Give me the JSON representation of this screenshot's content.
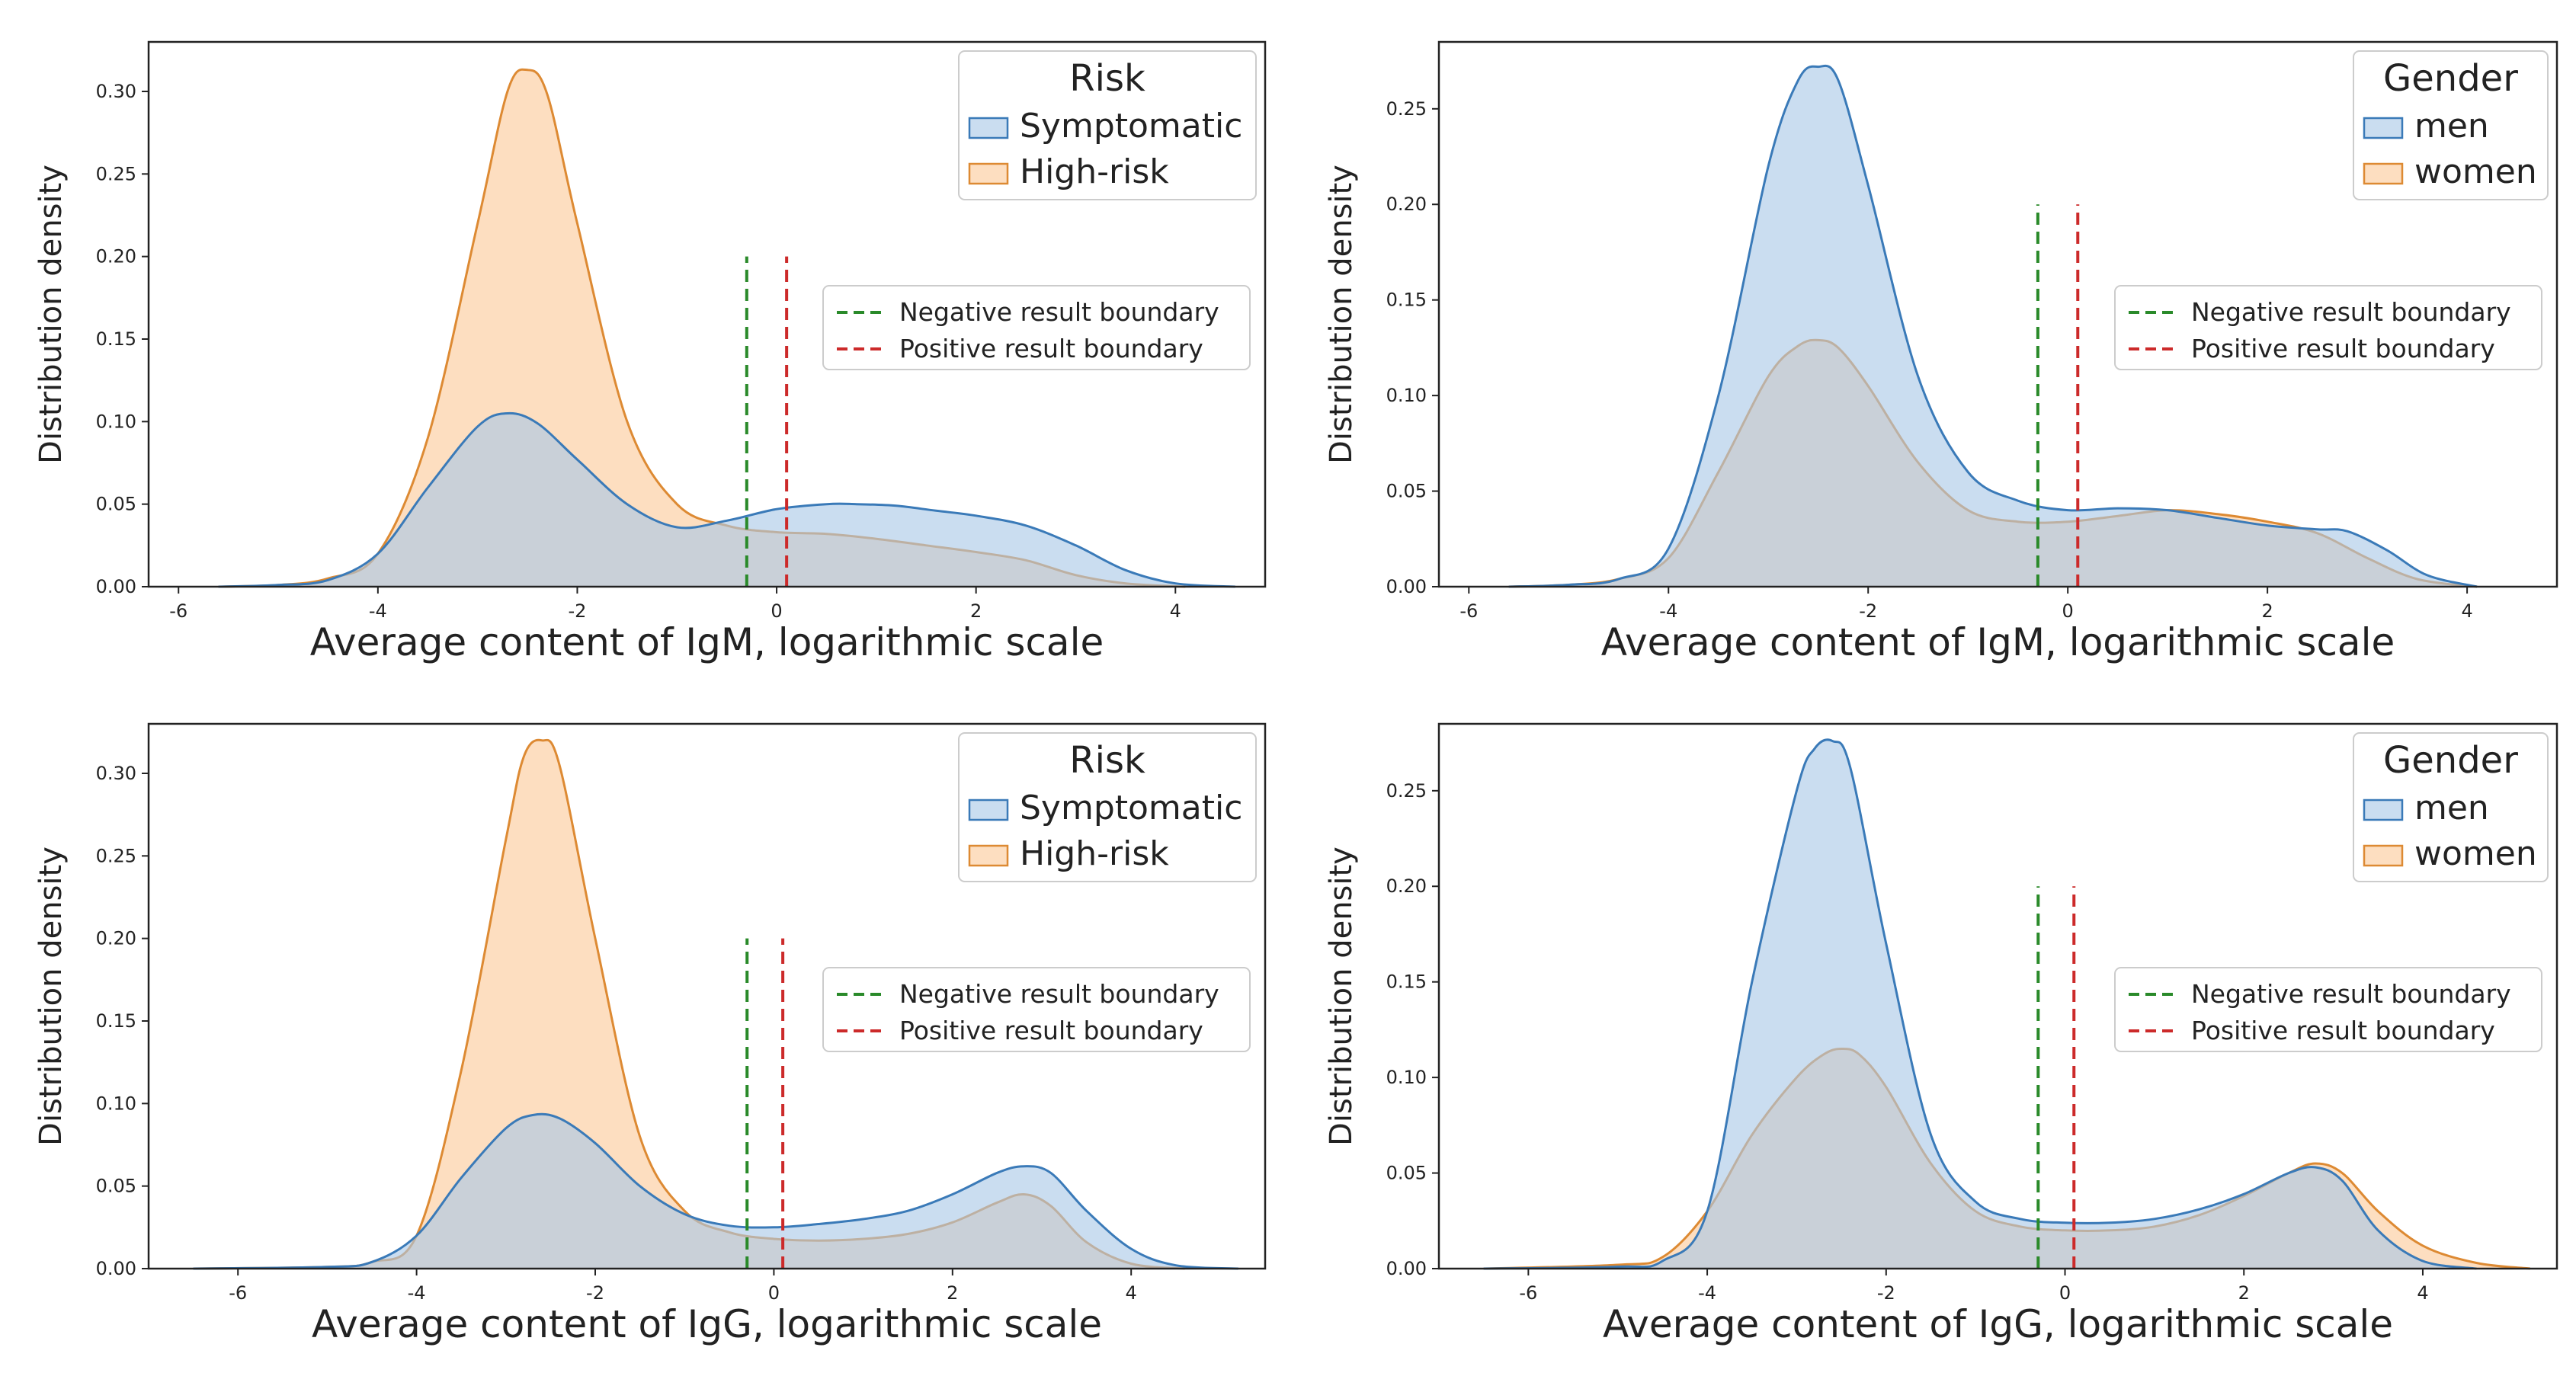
{
  "colors": {
    "blue_fill": "#a9c8e6",
    "blue_line": "#3a7ab8",
    "orange_fill": "#fbc99a",
    "orange_line": "#dd8a33",
    "negative_line": "#2a8a2a",
    "positive_line": "#cc2a2a"
  },
  "chart_data": [
    {
      "type": "area",
      "xlabel": "Average content of IgM, logarithmic scale",
      "ylabel": "Distribution density",
      "xlim": [
        -6.3,
        4.9
      ],
      "ylim": [
        0,
        0.33
      ],
      "xticks": [
        {
          "value": -6,
          "label": "-6"
        },
        {
          "value": -4,
          "label": "-4"
        },
        {
          "value": -2,
          "label": "-2"
        },
        {
          "value": 0,
          "label": "0"
        },
        {
          "value": 2,
          "label": "2"
        },
        {
          "value": 4,
          "label": "4"
        }
      ],
      "yticks": [
        {
          "value": 0,
          "label": "0.00"
        },
        {
          "value": 0.05,
          "label": "0.05"
        },
        {
          "value": 0.1,
          "label": "0.10"
        },
        {
          "value": 0.15,
          "label": "0.15"
        },
        {
          "value": 0.2,
          "label": "0.20"
        },
        {
          "value": 0.25,
          "label": "0.25"
        },
        {
          "value": 0.3,
          "label": "0.30"
        }
      ],
      "series_legend": {
        "title": "Risk",
        "placement": "top-right"
      },
      "boundary_legend": {
        "placement": "center-right"
      },
      "series": [
        {
          "name": "Symptomatic",
          "color": "blue",
          "x": [
            -5.6,
            -5,
            -4.5,
            -4,
            -3.5,
            -3,
            -2.7,
            -2.4,
            -2,
            -1.5,
            -1,
            -0.5,
            0,
            0.5,
            0.8,
            1.2,
            1.6,
            2,
            2.5,
            3,
            3.5,
            4,
            4.6
          ],
          "y": [
            0,
            0.001,
            0.004,
            0.02,
            0.06,
            0.097,
            0.105,
            0.099,
            0.077,
            0.05,
            0.036,
            0.04,
            0.047,
            0.05,
            0.05,
            0.049,
            0.046,
            0.043,
            0.037,
            0.025,
            0.01,
            0.002,
            0
          ]
        },
        {
          "name": "High-risk",
          "color": "orange",
          "x": [
            -5.6,
            -5,
            -4.5,
            -4,
            -3.5,
            -3,
            -2.7,
            -2.5,
            -2.3,
            -2,
            -1.5,
            -1,
            -0.5,
            0,
            0.5,
            1,
            1.5,
            2,
            2.5,
            3,
            3.5,
            4.1
          ],
          "y": [
            0,
            0.001,
            0.005,
            0.02,
            0.09,
            0.22,
            0.3,
            0.313,
            0.298,
            0.22,
            0.1,
            0.05,
            0.037,
            0.033,
            0.032,
            0.029,
            0.025,
            0.021,
            0.016,
            0.007,
            0.002,
            0
          ]
        }
      ],
      "boundaries": [
        {
          "name": "Negative result boundary",
          "x": -0.3,
          "ymax": 0.2,
          "color": "green"
        },
        {
          "name": "Positive result boundary",
          "x": 0.1,
          "ymax": 0.2,
          "color": "red"
        }
      ]
    },
    {
      "type": "area",
      "xlabel": "Average content of IgM, logarithmic scale",
      "ylabel": "Distribution density",
      "xlim": [
        -6.3,
        4.9
      ],
      "ylim": [
        0,
        0.285
      ],
      "xticks": [
        {
          "value": -6,
          "label": "-6"
        },
        {
          "value": -4,
          "label": "-4"
        },
        {
          "value": -2,
          "label": "-2"
        },
        {
          "value": 0,
          "label": "0"
        },
        {
          "value": 2,
          "label": "2"
        },
        {
          "value": 4,
          "label": "4"
        }
      ],
      "yticks": [
        {
          "value": 0,
          "label": "0.00"
        },
        {
          "value": 0.05,
          "label": "0.05"
        },
        {
          "value": 0.1,
          "label": "0.10"
        },
        {
          "value": 0.15,
          "label": "0.15"
        },
        {
          "value": 0.2,
          "label": "0.20"
        },
        {
          "value": 0.25,
          "label": "0.25"
        }
      ],
      "series_legend": {
        "title": "Gender",
        "placement": "top-right"
      },
      "boundary_legend": {
        "placement": "center-right"
      },
      "series": [
        {
          "name": "men",
          "color": "blue",
          "x": [
            -5.6,
            -5,
            -4.5,
            -4,
            -3.5,
            -3,
            -2.7,
            -2.5,
            -2.3,
            -2,
            -1.5,
            -1,
            -0.5,
            0,
            0.5,
            1,
            1.5,
            2,
            2.5,
            2.8,
            3.2,
            3.6,
            4.1
          ],
          "y": [
            0,
            0.001,
            0.004,
            0.02,
            0.1,
            0.22,
            0.265,
            0.272,
            0.265,
            0.21,
            0.11,
            0.06,
            0.045,
            0.04,
            0.041,
            0.04,
            0.036,
            0.032,
            0.03,
            0.029,
            0.019,
            0.006,
            0
          ]
        },
        {
          "name": "women",
          "color": "orange",
          "x": [
            -5.6,
            -5,
            -4.5,
            -4,
            -3.5,
            -3,
            -2.7,
            -2.5,
            -2.3,
            -2,
            -1.5,
            -1,
            -0.5,
            0,
            0.5,
            1,
            1.5,
            2,
            2.5,
            3,
            3.5,
            4.1
          ],
          "y": [
            0,
            0.001,
            0.004,
            0.015,
            0.06,
            0.11,
            0.126,
            0.129,
            0.125,
            0.105,
            0.065,
            0.04,
            0.034,
            0.034,
            0.037,
            0.04,
            0.038,
            0.034,
            0.028,
            0.015,
            0.004,
            0
          ]
        }
      ],
      "boundaries": [
        {
          "name": "Negative result boundary",
          "x": -0.3,
          "ymax": 0.2,
          "color": "green"
        },
        {
          "name": "Positive result boundary",
          "x": 0.1,
          "ymax": 0.2,
          "color": "red"
        }
      ]
    },
    {
      "type": "area",
      "xlabel": "Average content of IgG, logarithmic scale",
      "ylabel": "Distribution density",
      "xlim": [
        -7.0,
        5.5
      ],
      "ylim": [
        0,
        0.33
      ],
      "xticks": [
        {
          "value": -6,
          "label": "-6"
        },
        {
          "value": -4,
          "label": "-4"
        },
        {
          "value": -2,
          "label": "-2"
        },
        {
          "value": 0,
          "label": "0"
        },
        {
          "value": 2,
          "label": "2"
        },
        {
          "value": 4,
          "label": "4"
        }
      ],
      "yticks": [
        {
          "value": 0,
          "label": "0.00"
        },
        {
          "value": 0.05,
          "label": "0.05"
        },
        {
          "value": 0.1,
          "label": "0.10"
        },
        {
          "value": 0.15,
          "label": "0.15"
        },
        {
          "value": 0.2,
          "label": "0.20"
        },
        {
          "value": 0.25,
          "label": "0.25"
        },
        {
          "value": 0.3,
          "label": "0.30"
        }
      ],
      "series_legend": {
        "title": "Risk",
        "placement": "top-right"
      },
      "boundary_legend": {
        "placement": "center-right"
      },
      "series": [
        {
          "name": "Symptomatic",
          "color": "blue",
          "x": [
            -6.5,
            -5,
            -4.5,
            -4,
            -3.5,
            -3,
            -2.7,
            -2.4,
            -2,
            -1.5,
            -1,
            -0.5,
            0,
            0.5,
            1,
            1.5,
            2,
            2.5,
            2.8,
            3.1,
            3.5,
            4,
            4.5,
            5.2
          ],
          "y": [
            0,
            0.001,
            0.004,
            0.02,
            0.055,
            0.085,
            0.093,
            0.091,
            0.076,
            0.05,
            0.033,
            0.026,
            0.025,
            0.027,
            0.03,
            0.035,
            0.045,
            0.058,
            0.062,
            0.058,
            0.035,
            0.012,
            0.002,
            0
          ]
        },
        {
          "name": "High-risk",
          "color": "orange",
          "x": [
            -6.5,
            -5,
            -4.5,
            -4,
            -3.5,
            -3,
            -2.8,
            -2.6,
            -2.4,
            -2,
            -1.5,
            -1,
            -0.5,
            0,
            0.5,
            1,
            1.5,
            2,
            2.5,
            2.8,
            3.1,
            3.5,
            4,
            4.6
          ],
          "y": [
            0,
            0.001,
            0.004,
            0.02,
            0.12,
            0.26,
            0.31,
            0.32,
            0.305,
            0.2,
            0.08,
            0.035,
            0.022,
            0.018,
            0.017,
            0.018,
            0.021,
            0.028,
            0.04,
            0.045,
            0.038,
            0.016,
            0.003,
            0
          ]
        }
      ],
      "boundaries": [
        {
          "name": "Negative result boundary",
          "x": -0.3,
          "ymax": 0.2,
          "color": "green"
        },
        {
          "name": "Positive result boundary",
          "x": 0.1,
          "ymax": 0.2,
          "color": "red"
        }
      ]
    },
    {
      "type": "area",
      "xlabel": "Average content of IgG, logarithmic scale",
      "ylabel": "Distribution density",
      "xlim": [
        -7.0,
        5.5
      ],
      "ylim": [
        0,
        0.285
      ],
      "xticks": [
        {
          "value": -6,
          "label": "-6"
        },
        {
          "value": -4,
          "label": "-4"
        },
        {
          "value": -2,
          "label": "-2"
        },
        {
          "value": 0,
          "label": "0"
        },
        {
          "value": 2,
          "label": "2"
        },
        {
          "value": 4,
          "label": "4"
        }
      ],
      "yticks": [
        {
          "value": 0,
          "label": "0.00"
        },
        {
          "value": 0.05,
          "label": "0.05"
        },
        {
          "value": 0.1,
          "label": "0.10"
        },
        {
          "value": 0.15,
          "label": "0.15"
        },
        {
          "value": 0.2,
          "label": "0.20"
        },
        {
          "value": 0.25,
          "label": "0.25"
        }
      ],
      "series_legend": {
        "title": "Gender",
        "placement": "top-right"
      },
      "boundary_legend": {
        "placement": "center-right"
      },
      "series": [
        {
          "name": "men",
          "color": "blue",
          "x": [
            -6.5,
            -5,
            -4.5,
            -4,
            -3.5,
            -3,
            -2.8,
            -2.6,
            -2.4,
            -2,
            -1.5,
            -1,
            -0.5,
            0,
            0.5,
            1,
            1.5,
            2,
            2.5,
            2.8,
            3.1,
            3.5,
            4,
            4.6
          ],
          "y": [
            0,
            0.001,
            0.004,
            0.03,
            0.15,
            0.25,
            0.272,
            0.276,
            0.262,
            0.17,
            0.07,
            0.035,
            0.026,
            0.024,
            0.024,
            0.026,
            0.031,
            0.039,
            0.05,
            0.053,
            0.046,
            0.02,
            0.004,
            0
          ]
        },
        {
          "name": "women",
          "color": "orange",
          "x": [
            -6.5,
            -5,
            -4.5,
            -4,
            -3.5,
            -3,
            -2.7,
            -2.5,
            -2.3,
            -2,
            -1.5,
            -1,
            -0.5,
            0,
            0.5,
            1,
            1.5,
            2,
            2.5,
            2.8,
            3.1,
            3.5,
            4,
            4.6,
            5.2
          ],
          "y": [
            0,
            0.002,
            0.006,
            0.03,
            0.07,
            0.1,
            0.112,
            0.115,
            0.112,
            0.095,
            0.055,
            0.03,
            0.022,
            0.02,
            0.02,
            0.022,
            0.028,
            0.038,
            0.05,
            0.055,
            0.05,
            0.03,
            0.012,
            0.003,
            0
          ]
        }
      ],
      "boundaries": [
        {
          "name": "Negative result boundary",
          "x": -0.3,
          "ymax": 0.2,
          "color": "green"
        },
        {
          "name": "Positive result boundary",
          "x": 0.1,
          "ymax": 0.2,
          "color": "red"
        }
      ]
    }
  ]
}
